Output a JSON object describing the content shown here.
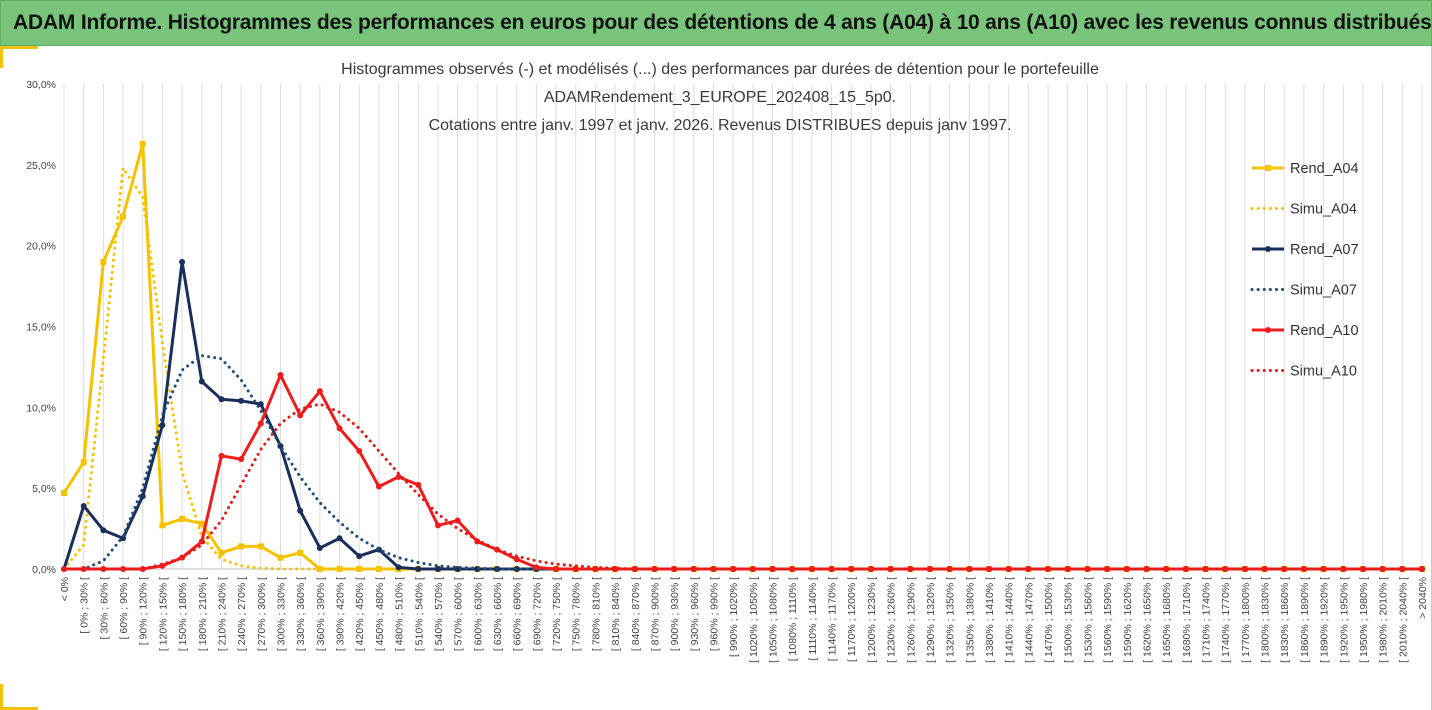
{
  "header": {
    "title": "ADAM Informe. Histogrammes des performances en euros pour des détentions de 4 ans (A04) à 10 ans (A10) avec les revenus connus distribués"
  },
  "chart_data": {
    "type": "line",
    "title_lines": [
      "Histogrammes observés (-) et modélisés (...) des performances par durées de détention pour le portefeuille",
      "ADAMRendement_3_EUROPE_202408_15_5p0.",
      "Cotations entre janv. 1997 et janv. 2026. Revenus DISTRIBUES depuis janv 1997."
    ],
    "ylim": [
      0,
      0.3
    ],
    "yticks": [
      "0,0%",
      "5,0%",
      "10,0%",
      "15,0%",
      "20,0%",
      "25,0%",
      "30,0%"
    ],
    "categories": [
      "< 0%",
      "[ 0% ; 30% [",
      "[ 30% ; 60% [",
      "[ 60% ; 90% [",
      "[ 90% ; 120% [",
      "[ 120% ; 150% [",
      "[ 150% ; 180% [",
      "[ 180% ; 210% [",
      "[ 210% ; 240% [",
      "[ 240% ; 270% [",
      "[ 270% ; 300% [",
      "[ 300% ; 330% [",
      "[ 330% ; 360% [",
      "[ 360% ; 390% [",
      "[ 390% ; 420% [",
      "[ 420% ; 450% [",
      "[ 450% ; 480% [",
      "[ 480% ; 510% [",
      "[ 510% ; 540% [",
      "[ 540% ; 570% [",
      "[ 570% ; 600% [",
      "[ 600% ; 630% [",
      "[ 630% ; 660% [",
      "[ 660% ; 690% [",
      "[ 690% ; 720% [",
      "[ 720% ; 750% [",
      "[ 750% ; 780% [",
      "[ 780% ; 810% [",
      "[ 810% ; 840% [",
      "[ 840% ; 870% [",
      "[ 870% ; 900% [",
      "[ 900% ; 930% [",
      "[ 930% ; 960% [",
      "[ 960% ; 990% [",
      "[ 990% ; 1020% [",
      "[ 1020% ; 1050% [",
      "[ 1050% ; 1080% [",
      "[ 1080% ; 1110% [",
      "[ 1110% ; 1140% [",
      "[ 1140% ; 1170% [",
      "[ 1170% ; 1200% [",
      "[ 1200% ; 1230% [",
      "[ 1230% ; 1260% [",
      "[ 1260% ; 1290% [",
      "[ 1290% ; 1320% [",
      "[ 1320% ; 1350% [",
      "[ 1350% ; 1380% [",
      "[ 1380% ; 1410% [",
      "[ 1410% ; 1440% [",
      "[ 1440% ; 1470% [",
      "[ 1470% ; 1500% [",
      "[ 1500% ; 1530% [",
      "[ 1530% ; 1560% [",
      "[ 1560% ; 1590% [",
      "[ 1590% ; 1620% [",
      "[ 1620% ; 1650% [",
      "[ 1650% ; 1680% [",
      "[ 1680% ; 1710% [",
      "[ 1710% ; 1740% [",
      "[ 1740% ; 1770% [",
      "[ 1770% ; 1800% [",
      "[ 1800% ; 1830% [",
      "[ 1830% ; 1860% [",
      "[ 1860% ; 1890% [",
      "[ 1890% ; 1920% [",
      "[ 1920% ; 1950% [",
      "[ 1950% ; 1980% [",
      "[ 1980% ; 2010% [",
      "[ 2010% ; 2040% [",
      "> 2040%"
    ],
    "series": [
      {
        "name": "Rend_A04",
        "color": "#f5c200",
        "style": "solid",
        "marker": "square",
        "values": [
          0.047,
          0.066,
          0.19,
          0.218,
          0.263,
          0.027,
          0.031,
          0.028,
          0.01,
          0.014,
          0.014,
          0.007,
          0.01,
          0,
          0,
          0,
          0,
          0,
          0,
          0,
          0,
          0,
          0,
          0,
          0,
          0,
          0,
          0,
          0,
          0,
          0,
          0,
          0,
          0,
          0,
          0,
          0,
          0,
          0,
          0,
          0,
          0,
          0,
          0,
          0,
          0,
          0,
          0,
          0,
          0,
          0,
          0,
          0,
          0,
          0,
          0,
          0,
          0,
          0,
          0,
          0,
          0,
          0,
          0,
          0,
          0,
          0,
          0,
          0,
          0
        ]
      },
      {
        "name": "Simu_A04",
        "color": "#f5c200",
        "style": "dotted",
        "marker": "none",
        "values": [
          0.0,
          0.015,
          0.13,
          0.248,
          0.23,
          0.14,
          0.06,
          0.02,
          0.006,
          0.002,
          0.0005,
          0,
          0,
          0,
          0,
          0,
          0,
          0,
          0,
          0,
          0,
          0,
          0,
          0,
          0,
          0,
          0,
          0,
          0,
          0,
          0,
          0,
          0,
          0,
          0,
          0,
          0,
          0,
          0,
          0,
          0,
          0,
          0,
          0,
          0,
          0,
          0,
          0,
          0,
          0,
          0,
          0,
          0,
          0,
          0,
          0,
          0,
          0,
          0,
          0,
          0,
          0,
          0,
          0,
          0,
          0,
          0,
          0,
          0,
          0
        ]
      },
      {
        "name": "Rend_A07",
        "color": "#1b2e5a",
        "style": "solid",
        "marker": "circle",
        "values": [
          0.0,
          0.039,
          0.024,
          0.019,
          0.045,
          0.089,
          0.19,
          0.116,
          0.105,
          0.104,
          0.102,
          0.076,
          0.036,
          0.013,
          0.019,
          0.008,
          0.012,
          0.001,
          0,
          0,
          0,
          0,
          0,
          0,
          0,
          0,
          0,
          0,
          0,
          0,
          0,
          0,
          0,
          0,
          0,
          0,
          0,
          0,
          0,
          0,
          0,
          0,
          0,
          0,
          0,
          0,
          0,
          0,
          0,
          0,
          0,
          0,
          0,
          0,
          0,
          0,
          0,
          0,
          0,
          0,
          0,
          0,
          0,
          0,
          0,
          0,
          0,
          0,
          0,
          0
        ]
      },
      {
        "name": "Simu_A07",
        "color": "#1f4e79",
        "style": "dotted",
        "marker": "none",
        "values": [
          0.0,
          0.0,
          0.005,
          0.02,
          0.05,
          0.095,
          0.123,
          0.132,
          0.13,
          0.117,
          0.098,
          0.076,
          0.057,
          0.041,
          0.029,
          0.019,
          0.012,
          0.007,
          0.004,
          0.002,
          0.001,
          0.0005,
          0,
          0,
          0,
          0,
          0,
          0,
          0,
          0,
          0,
          0,
          0,
          0,
          0,
          0,
          0,
          0,
          0,
          0,
          0,
          0,
          0,
          0,
          0,
          0,
          0,
          0,
          0,
          0,
          0,
          0,
          0,
          0,
          0,
          0,
          0,
          0,
          0,
          0,
          0,
          0,
          0,
          0,
          0,
          0,
          0,
          0,
          0,
          0
        ]
      },
      {
        "name": "Rend_A10",
        "color": "#ee1c1c",
        "style": "solid",
        "marker": "circle",
        "values": [
          0.0,
          0.0,
          0.0,
          0.0,
          0.0,
          0.002,
          0.007,
          0.017,
          0.07,
          0.068,
          0.09,
          0.12,
          0.095,
          0.11,
          0.087,
          0.073,
          0.051,
          0.057,
          0.052,
          0.027,
          0.03,
          0.017,
          0.012,
          0.006,
          0.001,
          0.0,
          0,
          0,
          0,
          0,
          0,
          0,
          0,
          0,
          0,
          0,
          0,
          0,
          0,
          0,
          0,
          0,
          0,
          0,
          0,
          0,
          0,
          0,
          0,
          0,
          0,
          0,
          0,
          0,
          0,
          0,
          0,
          0,
          0,
          0,
          0,
          0,
          0,
          0,
          0,
          0,
          0,
          0,
          0,
          0
        ]
      },
      {
        "name": "Simu_A10",
        "color": "#e41a1a",
        "style": "dotted",
        "marker": "none",
        "values": [
          0.0,
          0.0,
          0.0,
          0.0,
          0.0,
          0.003,
          0.007,
          0.015,
          0.03,
          0.052,
          0.074,
          0.09,
          0.099,
          0.102,
          0.097,
          0.087,
          0.073,
          0.059,
          0.046,
          0.034,
          0.025,
          0.018,
          0.012,
          0.008,
          0.005,
          0.003,
          0.002,
          0.001,
          0.0005,
          0,
          0,
          0,
          0,
          0,
          0,
          0,
          0,
          0,
          0,
          0,
          0,
          0,
          0,
          0,
          0,
          0,
          0,
          0,
          0,
          0,
          0,
          0,
          0,
          0,
          0,
          0,
          0,
          0,
          0,
          0,
          0,
          0,
          0,
          0,
          0,
          0,
          0,
          0,
          0,
          0
        ]
      }
    ],
    "grid": true,
    "legend": "right"
  }
}
